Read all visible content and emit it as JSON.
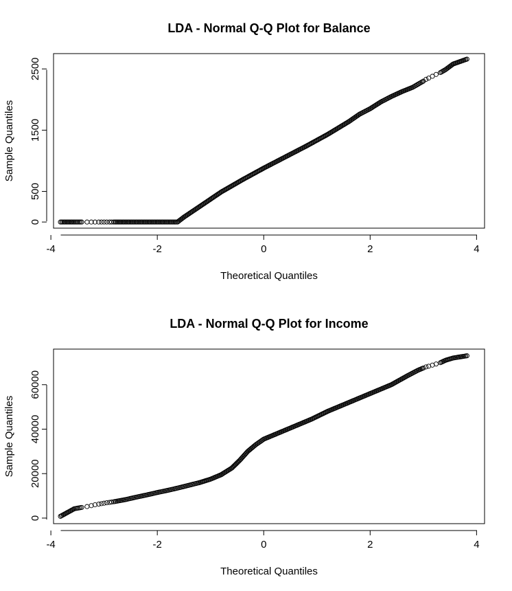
{
  "chart_data": [
    {
      "type": "scatter",
      "title": "LDA - Normal Q-Q Plot for Balance",
      "xlabel": "Theoretical Quantiles",
      "ylabel": "Sample Quantiles",
      "xlim": [
        -3.95,
        4.15
      ],
      "ylim": [
        -100,
        2750
      ],
      "xticks": [
        -4,
        -2,
        0,
        2,
        4
      ],
      "xtick_labels": [
        "-4",
        "-2",
        "0",
        "2",
        "4"
      ],
      "yticks": [
        0,
        500,
        1500,
        2500
      ],
      "ytick_labels": [
        "0",
        "500",
        "1500",
        "2500"
      ],
      "grid": false,
      "legend": "none",
      "series": [
        {
          "name": "Balance",
          "points": [
            [
              -3.82,
              0
            ],
            [
              -3.56,
              0
            ],
            [
              -3.42,
              0
            ],
            [
              -3.32,
              0
            ],
            [
              -3.24,
              0
            ],
            [
              -3.17,
              0
            ],
            [
              -3.1,
              0
            ],
            [
              -3.05,
              0
            ],
            [
              -3.0,
              0
            ],
            [
              -2.95,
              0
            ],
            [
              -2.9,
              0
            ],
            [
              -2.86,
              0
            ],
            [
              -2.82,
              0
            ],
            [
              -2.6,
              0
            ],
            [
              -2.4,
              0
            ],
            [
              -2.2,
              0
            ],
            [
              -2.0,
              0
            ],
            [
              -1.8,
              0
            ],
            [
              -1.62,
              0
            ],
            [
              -1.5,
              80
            ],
            [
              -1.2,
              255
            ],
            [
              -0.8,
              490
            ],
            [
              -0.4,
              690
            ],
            [
              0.0,
              880
            ],
            [
              0.4,
              1060
            ],
            [
              0.8,
              1240
            ],
            [
              1.2,
              1430
            ],
            [
              1.6,
              1640
            ],
            [
              1.8,
              1760
            ],
            [
              2.0,
              1850
            ],
            [
              2.2,
              1960
            ],
            [
              2.4,
              2050
            ],
            [
              2.6,
              2130
            ],
            [
              2.8,
              2200
            ],
            [
              2.9,
              2250
            ],
            [
              3.0,
              2300
            ],
            [
              3.05,
              2330
            ],
            [
              3.1,
              2350
            ],
            [
              3.17,
              2380
            ],
            [
              3.24,
              2410
            ],
            [
              3.32,
              2440
            ],
            [
              3.42,
              2490
            ],
            [
              3.56,
              2580
            ],
            [
              3.82,
              2660
            ]
          ]
        }
      ]
    },
    {
      "type": "scatter",
      "title": "LDA - Normal Q-Q Plot for Income",
      "xlabel": "Theoretical Quantiles",
      "ylabel": "Sample Quantiles",
      "xlim": [
        -3.95,
        4.15
      ],
      "ylim": [
        -2500,
        76000
      ],
      "xticks": [
        -4,
        -2,
        0,
        2,
        4
      ],
      "xtick_labels": [
        "-4",
        "-2",
        "0",
        "2",
        "4"
      ],
      "yticks": [
        0,
        20000,
        40000,
        60000
      ],
      "ytick_labels": [
        "0",
        "20000",
        "40000",
        "60000"
      ],
      "grid": false,
      "legend": "none",
      "series": [
        {
          "name": "Income",
          "points": [
            [
              -3.82,
              800
            ],
            [
              -3.56,
              4200
            ],
            [
              -3.42,
              4800
            ],
            [
              -3.32,
              5200
            ],
            [
              -3.24,
              5600
            ],
            [
              -3.17,
              6000
            ],
            [
              -3.1,
              6300
            ],
            [
              -3.05,
              6500
            ],
            [
              -3.0,
              6700
            ],
            [
              -2.95,
              6900
            ],
            [
              -2.9,
              7050
            ],
            [
              -2.86,
              7200
            ],
            [
              -2.82,
              7350
            ],
            [
              -2.6,
              8300
            ],
            [
              -2.4,
              9400
            ],
            [
              -2.2,
              10400
            ],
            [
              -2.0,
              11500
            ],
            [
              -1.8,
              12500
            ],
            [
              -1.6,
              13600
            ],
            [
              -1.4,
              14800
            ],
            [
              -1.2,
              16000
            ],
            [
              -1.0,
              17500
            ],
            [
              -0.8,
              19500
            ],
            [
              -0.6,
              22500
            ],
            [
              -0.45,
              26000
            ],
            [
              -0.3,
              30000
            ],
            [
              -0.15,
              33000
            ],
            [
              0.0,
              35500
            ],
            [
              0.3,
              38500
            ],
            [
              0.6,
              41500
            ],
            [
              0.9,
              44500
            ],
            [
              1.2,
              48000
            ],
            [
              1.5,
              51000
            ],
            [
              1.8,
              54000
            ],
            [
              2.1,
              57000
            ],
            [
              2.4,
              60000
            ],
            [
              2.7,
              64000
            ],
            [
              2.9,
              66500
            ],
            [
              3.0,
              67500
            ],
            [
              3.05,
              68000
            ],
            [
              3.1,
              68300
            ],
            [
              3.17,
              68800
            ],
            [
              3.24,
              69300
            ],
            [
              3.32,
              69900
            ],
            [
              3.42,
              71000
            ],
            [
              3.56,
              72000
            ],
            [
              3.82,
              73000
            ]
          ]
        }
      ]
    }
  ]
}
